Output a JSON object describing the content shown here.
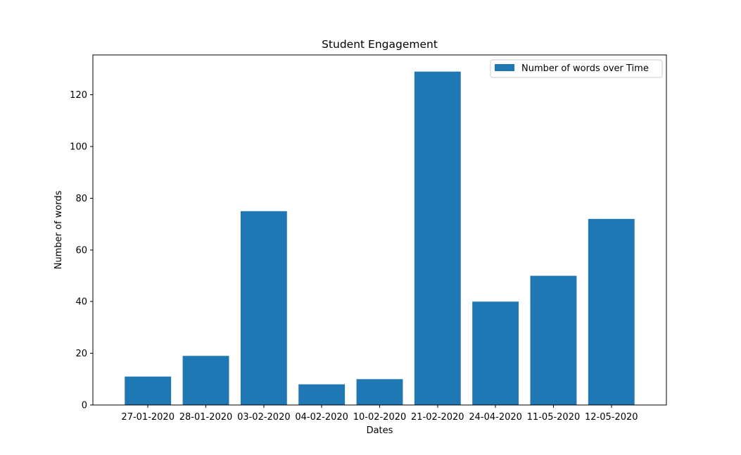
{
  "chart_data": {
    "type": "bar",
    "title": "Student Engagement",
    "xlabel": "Dates",
    "ylabel": "Number of words",
    "categories": [
      "27-01-2020",
      "28-01-2020",
      "03-02-2020",
      "04-02-2020",
      "10-02-2020",
      "21-02-2020",
      "24-04-2020",
      "11-05-2020",
      "12-05-2020"
    ],
    "series": [
      {
        "name": "Number of words over Time",
        "values": [
          11,
          19,
          75,
          8,
          10,
          129,
          40,
          50,
          72
        ],
        "color": "#1f77b4"
      }
    ],
    "ylim": [
      0,
      135.45
    ],
    "yticks": [
      0,
      20,
      40,
      60,
      80,
      100,
      120
    ],
    "grid": false,
    "legend_position": "top-right"
  }
}
